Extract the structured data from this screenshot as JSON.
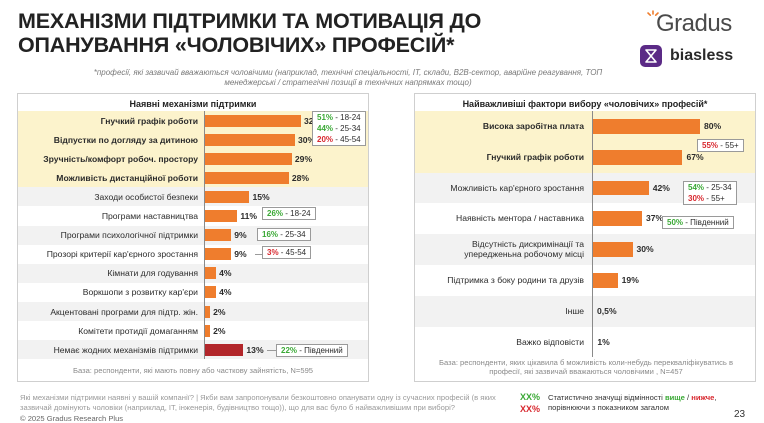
{
  "title": "МЕХАНІЗМИ ПІДТРИМКИ ТА МОТИВАЦІЯ ДО ОПАНУВАННЯ «ЧОЛОВІЧИХ» ПРОФЕСІЙ*",
  "subtitle": "*професії, які зазвичай вважаються чоловічими (наприклад, технічні спеціальності, ІТ, склади, B2B-сектор, аварійне реагування, ТОП менеджерські / стратегічні позиції в технічних напрямках тощо)",
  "logos": {
    "gradus": "Gradus",
    "biasless": "biasless"
  },
  "colors": {
    "bar": "#ef7d2d",
    "bar_dark": "#b2262a",
    "highlight": "#fcf3cc",
    "higher": "#3aa935",
    "lower": "#d8282f"
  },
  "chart_data": [
    {
      "type": "bar",
      "title": "Наявні механізми підтримки",
      "categories": [
        "Гнучкий графік роботи",
        "Відпустки по догляду за дитиною",
        "Зручність/комфорт робоч. простору",
        "Можливість дистанційної роботи",
        "Заходи особистої безпеки",
        "Програми наставництва",
        "Програми психологічної підтримки",
        "Прозорі критерії кар'єрного зростання",
        "Кімнати для годування",
        "Воркшопи з розвитку кар'єри",
        "Акцентовані програми для підтр. жін.",
        "Комітети протидії домаганням",
        "Немає жодних механізмів підтримки"
      ],
      "values": [
        32,
        30,
        29,
        28,
        15,
        11,
        9,
        9,
        4,
        4,
        2,
        2,
        13
      ],
      "value_labels": [
        "32%",
        "30%",
        "29%",
        "28%",
        "15%",
        "11%",
        "9%",
        "9%",
        "4%",
        "4%",
        "2%",
        "2%",
        "13%"
      ],
      "base_note": "База: респонденти, які мають повну або часткову зайнятість, N=595"
    },
    {
      "type": "bar",
      "title": "Найважливіші фактори вибору «чоловічих» професій*",
      "categories": [
        "Висока заробітна плата",
        "Гнучкий графік роботи",
        "Можливість кар'єрного зростання",
        "Наявність ментора / наставника",
        "Відсутність дискримінації та упередженьна робочому місці",
        "Підтримка з боку родини та друзів",
        "Інше",
        "Важко відповісти"
      ],
      "values": [
        80,
        67,
        42,
        37,
        30,
        19,
        0.5,
        1
      ],
      "value_labels": [
        "80%",
        "67%",
        "42%",
        "37%",
        "30%",
        "19%",
        "0,5%",
        "1%"
      ],
      "base_note": "База: респонденти, яких цікавила б можливість коли-небудь перекваліфікуватись в професії, які зазвичай вважаються чоловічими , N=457"
    }
  ],
  "left_callouts": [
    {
      "lines": [
        {
          "value": "51%",
          "label": " - 18-24",
          "dir": "higher"
        },
        {
          "value": "44%",
          "label": " - 25-34",
          "dir": "higher"
        },
        {
          "value": "20%",
          "label": " - 45-54",
          "dir": "lower"
        }
      ]
    },
    {
      "lines": [
        {
          "value": "26%",
          "label": " - 18-24",
          "dir": "higher"
        }
      ]
    },
    {
      "lines": [
        {
          "value": "16%",
          "label": " - 25-34",
          "dir": "higher"
        }
      ]
    },
    {
      "lines": [
        {
          "value": "3%",
          "label": " - 45-54",
          "dir": "lower"
        }
      ]
    },
    {
      "lines": [
        {
          "value": "22%",
          "label": " - Південний",
          "dir": "higher"
        }
      ]
    }
  ],
  "right_callouts": [
    {
      "lines": [
        {
          "value": "55%",
          "label": " - 55+",
          "dir": "lower"
        }
      ]
    },
    {
      "lines": [
        {
          "value": "54%",
          "label": " - 25-34",
          "dir": "higher"
        },
        {
          "value": "30%",
          "label": " - 55+",
          "dir": "lower"
        }
      ]
    },
    {
      "lines": [
        {
          "value": "50%",
          "label": " - Південний",
          "dir": "higher"
        }
      ]
    }
  ],
  "question": "Які механізми підтримки наявні у вашій компанії? | Якби вам запропонували безкоштовно опанувати одну із сучасних професій (в яких зазвичай домінують чоловіки (наприклад, ІТ, інженерія, будівництво тощо)), що для вас було б найважливішим при виборі?",
  "copyright": "© 2025 Gradus Research Plus",
  "legend": {
    "marker": "XX%",
    "line1_pre": "Статистично значущі відмінності ",
    "higher": "вище",
    "sep": " / ",
    "lower": "нижче",
    "line1_post": ",",
    "line2": "порівнюючи з показником загалом"
  },
  "page_number": "23"
}
